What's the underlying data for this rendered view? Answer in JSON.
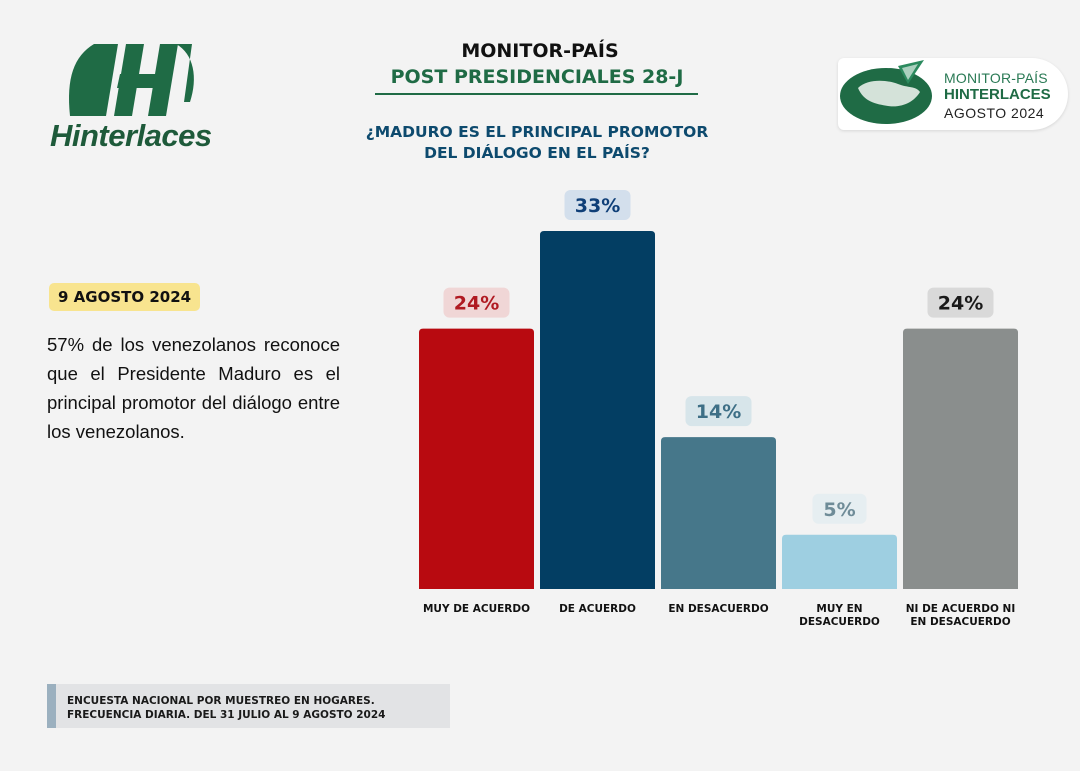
{
  "brand": {
    "logo_text": "Hinterlaces",
    "logo_mark": "hinterlaces-h-logo",
    "brand_color": "#1f6b45"
  },
  "header": {
    "title": "MONITOR-PAÍS",
    "subtitle": "POST PRESIDENCIALES 28-J"
  },
  "badge": {
    "line1": "MONITOR-PAÍS",
    "line2": "HINTERLACES",
    "line3": "AGOSTO 2024",
    "icon": "venezuela-globe-icon"
  },
  "left_panel": {
    "date": "9 AGOSTO 2024",
    "summary": "57% de los venezolanos reconoce que el Presidente Maduro es el principal promotor del diálogo entre los venezolanos."
  },
  "footer": {
    "line1": "ENCUESTA NACIONAL POR MUESTREO EN HOGARES.",
    "line2": "FRECUENCIA DIARIA. DEL 31 JULIO AL 9 AGOSTO 2024"
  },
  "chart_data": {
    "type": "bar",
    "title": "¿MADURO ES EL PRINCIPAL PROMOTOR DEL DIÁLOGO EN EL PAÍS?",
    "title_lines": [
      "¿MADURO ES EL PRINCIPAL PROMOTOR",
      "DEL DIÁLOGO EN EL PAÍS?"
    ],
    "categories": [
      [
        "MUY DE ACUERDO"
      ],
      [
        "DE ACUERDO"
      ],
      [
        "EN DESACUERDO"
      ],
      [
        "MUY EN",
        "DESACUERDO"
      ],
      [
        "NI DE ACUERDO NI",
        "EN DESACUERDO"
      ]
    ],
    "values": [
      24,
      33,
      14,
      5,
      24
    ],
    "value_labels": [
      "24%",
      "33%",
      "14%",
      "5%",
      "24%"
    ],
    "colors": [
      "#b80a10",
      "#033e63",
      "#46778a",
      "#9ecfe1",
      "#8a8e8d"
    ],
    "label_text_colors": [
      "#b01a22",
      "#0f3f78",
      "#3e6f86",
      "#6f8c98",
      "#1a1a1a"
    ],
    "label_bg_colors": [
      "#f0d6d6",
      "#d3dfec",
      "#d7e5ea",
      "#e6eef1",
      "#d9d9d9"
    ],
    "ylim": [
      0,
      33
    ],
    "grid": false,
    "legend": "none"
  }
}
